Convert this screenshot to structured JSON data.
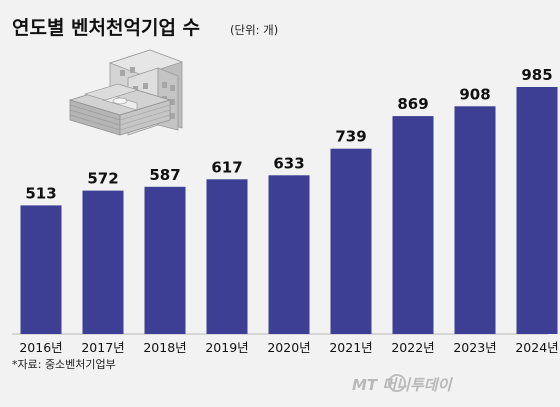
{
  "title": "연도별 벤처천억기업 수",
  "unit": "(단위: 개)",
  "source": "*자료: 중소벤처기업부",
  "watermark": "MT 머니투데이",
  "colors": {
    "bar": "#3c3f93",
    "background": "#f2f2f2",
    "grid": "#cfcfcf"
  },
  "chart_data": {
    "type": "bar",
    "title": "연도별 벤처천억기업 수",
    "unit": "(단위: 개)",
    "categories": [
      "2016년",
      "2017년",
      "2018년",
      "2019년",
      "2020년",
      "2021년",
      "2022년",
      "2023년",
      "2024년"
    ],
    "values": [
      513,
      572,
      587,
      617,
      633,
      739,
      869,
      908,
      985
    ],
    "ylim": [
      0,
      1100
    ],
    "grid": false,
    "legend": "none",
    "data_labels": true,
    "illustration": "office-building-with-money-stacks"
  }
}
